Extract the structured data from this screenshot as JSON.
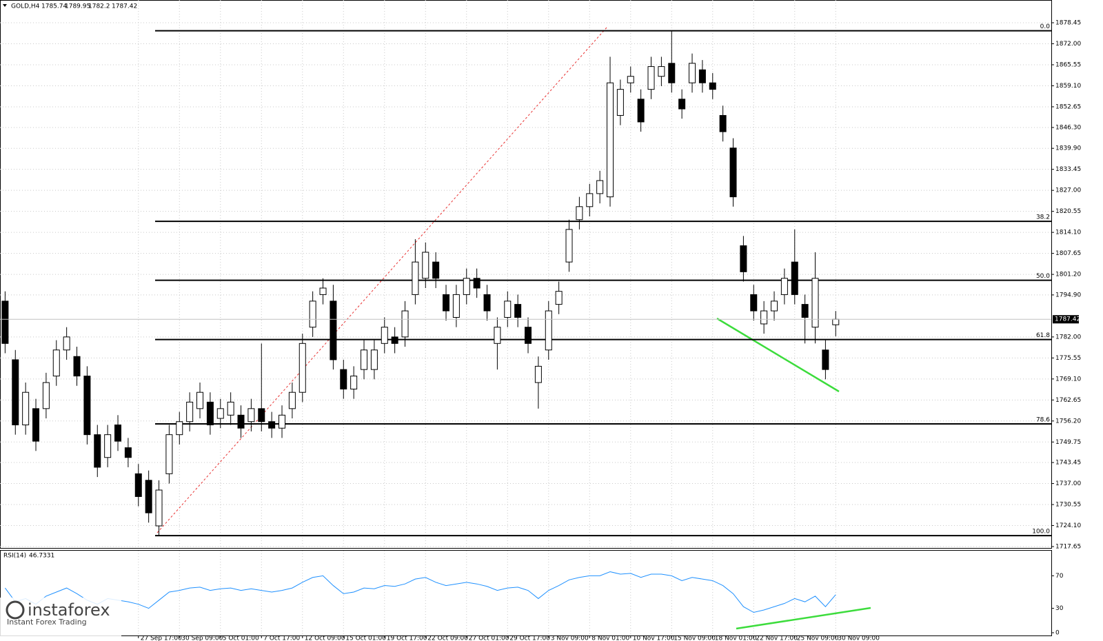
{
  "chart_data": {
    "type": "candlestick",
    "symbol": "GOLD,H4",
    "categories": [
      null,
      null,
      null,
      null,
      null,
      null,
      null,
      null,
      null,
      null,
      null,
      null,
      null,
      "27 Sep 17:00",
      null,
      null,
      null,
      "30 Sep 09:00",
      null,
      null,
      null,
      "5 Oct 01:00",
      null,
      null,
      null,
      "7 Oct 17:00",
      null,
      null,
      null,
      "12 Oct 09:00",
      null,
      null,
      null,
      "15 Oct 01:00",
      null,
      null,
      null,
      "19 Oct 17:00",
      null,
      null,
      null,
      "22 Oct 09:00",
      null,
      null,
      null,
      "27 Oct 01:00",
      null,
      null,
      null,
      "29 Oct 17:00",
      null,
      null,
      null,
      "3 Nov 09:00",
      null,
      null,
      null,
      "8 Nov 01:00",
      null,
      null,
      null,
      "10 Nov 17:00",
      null,
      null,
      null,
      "15 Nov 09:00",
      null,
      null,
      null,
      "18 Nov 01:00",
      null,
      null,
      null,
      "22 Nov 17:00",
      null,
      null,
      null,
      "25 Nov 09:00",
      null,
      null,
      null,
      "30 Nov 09:00"
    ],
    "open": [
      1793,
      1775,
      1755,
      1760,
      1760,
      1770,
      1778,
      1776,
      1770,
      1752,
      1745,
      1755,
      1748,
      1740,
      1738,
      1724,
      1740,
      1752,
      1756,
      1760,
      1762,
      1757,
      1758,
      1758,
      1756,
      1760,
      1756,
      1754,
      1760,
      1765,
      1785,
      1795,
      1793,
      1772,
      1766,
      1772,
      1772,
      1780,
      1782,
      1782,
      1795,
      1800,
      1805,
      1795,
      1788,
      1795,
      1800,
      1795,
      1780,
      1788,
      1792,
      1785,
      1768,
      1778,
      1792,
      1805,
      1818,
      1822,
      1826,
      1825,
      1850,
      1860,
      1855,
      1858,
      1862,
      1866,
      1855,
      1860,
      1864,
      1860,
      1850,
      1840,
      1810,
      1795,
      1786,
      1790,
      1795,
      1805,
      1792,
      1785,
      1778,
      1785.74
    ],
    "high": [
      1796,
      1778,
      1768,
      1763,
      1771,
      1781,
      1785,
      1779,
      1773,
      1755,
      1755,
      1758,
      1751,
      1743,
      1741,
      1738,
      1755,
      1759,
      1765,
      1768,
      1765,
      1763,
      1765,
      1761,
      1763,
      1780,
      1759,
      1761,
      1768,
      1783,
      1796,
      1800,
      1798,
      1775,
      1773,
      1781,
      1781,
      1788,
      1785,
      1793,
      1812,
      1811,
      1808,
      1798,
      1798,
      1803,
      1803,
      1798,
      1788,
      1796,
      1795,
      1788,
      1776,
      1793,
      1799,
      1818,
      1825,
      1829,
      1833,
      1868,
      1861,
      1865,
      1858,
      1868,
      1868,
      1876,
      1858,
      1869,
      1867,
      1863,
      1853,
      1843,
      1813,
      1798,
      1793,
      1796,
      1803,
      1815,
      1795,
      1808,
      1781,
      1789.95
    ],
    "low": [
      1777,
      1752,
      1752,
      1747,
      1757,
      1767,
      1775,
      1767,
      1749,
      1739,
      1742,
      1747,
      1742,
      1730,
      1725,
      1721,
      1737,
      1749,
      1753,
      1757,
      1752,
      1754,
      1755,
      1751,
      1753,
      1753,
      1751,
      1751,
      1757,
      1762,
      1782,
      1792,
      1772,
      1763,
      1763,
      1769,
      1769,
      1777,
      1777,
      1779,
      1792,
      1797,
      1797,
      1787,
      1785,
      1792,
      1794,
      1787,
      1772,
      1785,
      1785,
      1777,
      1760,
      1775,
      1789,
      1802,
      1815,
      1819,
      1823,
      1822,
      1847,
      1857,
      1845,
      1855,
      1859,
      1857,
      1849,
      1857,
      1857,
      1855,
      1842,
      1822,
      1799,
      1787,
      1783,
      1787,
      1792,
      1792,
      1780,
      1780,
      1769,
      1782.2
    ],
    "close": [
      1780,
      1755,
      1765,
      1750,
      1768,
      1778,
      1782,
      1770,
      1752,
      1742,
      1752,
      1750,
      1745,
      1733,
      1728,
      1735,
      1752,
      1756,
      1762,
      1765,
      1755,
      1760,
      1762,
      1754,
      1760,
      1756,
      1754,
      1758,
      1765,
      1780,
      1793,
      1797,
      1775,
      1766,
      1770,
      1778,
      1778,
      1785,
      1780,
      1790,
      1805,
      1808,
      1800,
      1790,
      1795,
      1800,
      1797,
      1790,
      1785,
      1793,
      1788,
      1780,
      1773,
      1790,
      1796,
      1815,
      1822,
      1826,
      1830,
      1860,
      1858,
      1862,
      1848,
      1865,
      1865,
      1860,
      1852,
      1866,
      1860,
      1858,
      1845,
      1825,
      1802,
      1790,
      1790,
      1793,
      1800,
      1795,
      1788,
      1800,
      1772,
      1787.42
    ],
    "ylim": [
      1717.65,
      1878.45
    ],
    "yticks": [
      {
        "value": 1878.45,
        "label": "1878.45"
      },
      {
        "value": 1872.0,
        "label": "1872.00"
      },
      {
        "value": 1865.55,
        "label": "1865.55"
      },
      {
        "value": 1859.1,
        "label": "1859.10"
      },
      {
        "value": 1852.65,
        "label": "1852.65"
      },
      {
        "value": 1846.3,
        "label": "1846.30"
      },
      {
        "value": 1839.9,
        "label": "1839.90"
      },
      {
        "value": 1833.45,
        "label": "1833.45"
      },
      {
        "value": 1827.0,
        "label": "1827.00"
      },
      {
        "value": 1820.55,
        "label": "1820.55"
      },
      {
        "value": 1814.1,
        "label": "1814.10"
      },
      {
        "value": 1807.65,
        "label": "1807.65"
      },
      {
        "value": 1801.2,
        "label": "1801.20"
      },
      {
        "value": 1794.9,
        "label": "1794.90"
      },
      {
        "value": 1782.0,
        "label": "1782.00"
      },
      {
        "value": 1775.55,
        "label": "1775.55"
      },
      {
        "value": 1769.1,
        "label": "1769.10"
      },
      {
        "value": 1762.65,
        "label": "1762.65"
      },
      {
        "value": 1756.2,
        "label": "1756.20"
      },
      {
        "value": 1749.75,
        "label": "1749.75"
      },
      {
        "value": 1743.45,
        "label": "1743.45"
      },
      {
        "value": 1737.0,
        "label": "1737.00"
      },
      {
        "value": 1730.55,
        "label": "1730.55"
      },
      {
        "value": 1724.1,
        "label": "1724.10"
      },
      {
        "value": 1717.65,
        "label": "1717.65"
      }
    ],
    "fib_levels": [
      {
        "label": "0.0",
        "price": 1876
      },
      {
        "label": "38.2",
        "price": 1817.5
      },
      {
        "label": "50.0",
        "price": 1799.4
      },
      {
        "label": "61.8",
        "price": 1781.2
      },
      {
        "label": "78.6",
        "price": 1755.3
      },
      {
        "label": "100.0",
        "price": 1721
      }
    ],
    "grid": true,
    "rsi_label": "RSI(14)",
    "rsi": [
      55,
      38,
      42,
      35,
      45,
      50,
      55,
      48,
      40,
      35,
      42,
      40,
      38,
      35,
      30,
      40,
      50,
      52,
      55,
      56,
      52,
      54,
      55,
      52,
      54,
      52,
      50,
      52,
      55,
      62,
      68,
      70,
      58,
      48,
      50,
      55,
      54,
      58,
      57,
      60,
      66,
      68,
      62,
      58,
      60,
      62,
      60,
      57,
      52,
      55,
      56,
      52,
      42,
      52,
      58,
      65,
      68,
      70,
      70,
      75,
      72,
      73,
      68,
      72,
      72,
      70,
      64,
      68,
      66,
      64,
      58,
      48,
      32,
      25,
      28,
      32,
      36,
      42,
      38,
      45,
      32,
      46.7331
    ],
    "rsi_color": "#1e90ff",
    "rsi_ylim": [
      0,
      100
    ],
    "rsi_yticks": [
      70,
      30,
      0
    ]
  },
  "logo": {
    "name": "instaforex",
    "tagline": "Instant Forex Trading"
  }
}
